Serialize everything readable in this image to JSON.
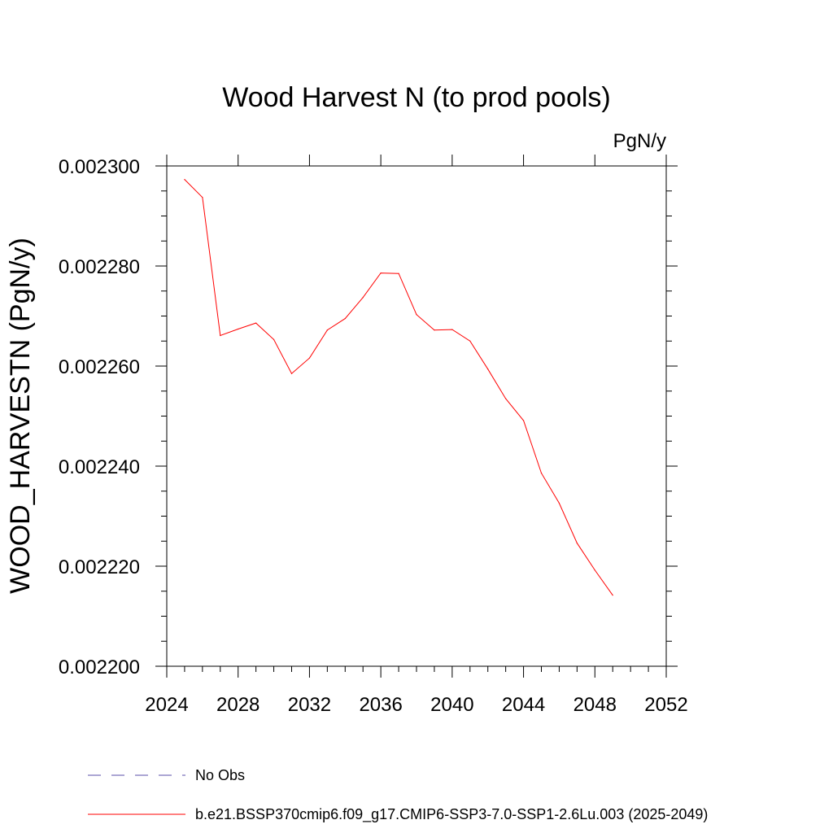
{
  "chart_data": {
    "type": "line",
    "title": "Wood Harvest N (to prod pools)",
    "units": "PgN/y",
    "ylabel": "WOOD_HARVESTN  (PgN/y)",
    "xlabel": "",
    "xlim": [
      2024,
      2052
    ],
    "ylim": [
      0.0022,
      0.0023
    ],
    "xticks": [
      2024,
      2028,
      2032,
      2036,
      2040,
      2044,
      2048,
      2052
    ],
    "xtick_labels": [
      "2024",
      "2028",
      "2032",
      "2036",
      "2040",
      "2044",
      "2048",
      "2052"
    ],
    "yticks": [
      0.0022,
      0.00222,
      0.00224,
      0.00226,
      0.00228,
      0.0023
    ],
    "ytick_labels": [
      "0.002200",
      "0.002220",
      "0.002240",
      "0.002260",
      "0.002280",
      "0.002300"
    ],
    "grid": false,
    "legend_position": "bottom",
    "series": [
      {
        "name": "b.e21.BSSP370cmip6.f09_g17.CMIP6-SSP3-7.0-SSP1-2.6Lu.003 (2025-2049)",
        "color": "#ff0000",
        "style": "solid",
        "x": [
          2025,
          2026,
          2027,
          2028,
          2029,
          2030,
          2031,
          2032,
          2033,
          2034,
          2035,
          2036,
          2037,
          2038,
          2039,
          2040,
          2041,
          2042,
          2043,
          2044,
          2045,
          2046,
          2047,
          2048,
          2049
        ],
        "y": [
          0.0022973,
          0.0022937,
          0.0022661,
          0.0022674,
          0.0022686,
          0.0022653,
          0.0022585,
          0.0022616,
          0.0022672,
          0.0022695,
          0.0022737,
          0.0022786,
          0.0022785,
          0.0022703,
          0.0022672,
          0.0022673,
          0.002265,
          0.0022594,
          0.0022535,
          0.0022491,
          0.0022386,
          0.0022326,
          0.0022246,
          0.0022192,
          0.0022142
        ]
      },
      {
        "name": "No Obs",
        "color": "#5a4ea8",
        "style": "dashed",
        "x": [],
        "y": []
      }
    ]
  }
}
